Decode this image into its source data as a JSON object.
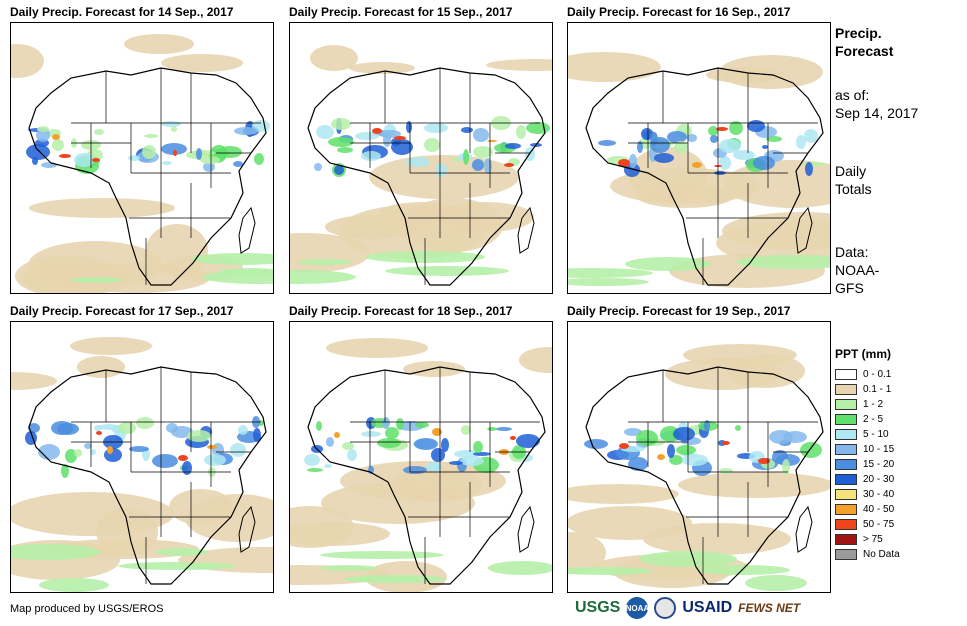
{
  "panels": [
    {
      "title": "Daily Precip. Forecast for 14  Sep., 2017",
      "variant": 0
    },
    {
      "title": "Daily Precip. Forecast for 15  Sep., 2017",
      "variant": 1
    },
    {
      "title": "Daily Precip. Forecast for 16  Sep., 2017",
      "variant": 2
    },
    {
      "title": "Daily Precip. Forecast for 17  Sep., 2017",
      "variant": 3
    },
    {
      "title": "Daily Precip. Forecast for 18  Sep., 2017",
      "variant": 4
    },
    {
      "title": "Daily Precip. Forecast for 19  Sep., 2017",
      "variant": 5
    }
  ],
  "sidebar": {
    "heading_line1": "Precip.",
    "heading_line2": "Forecast",
    "asof_label": "as of:",
    "asof_date": "Sep 14, 2017",
    "totals_line1": "Daily",
    "totals_line2": "Totals",
    "data_line1": "Data:",
    "data_line2": "NOAA-",
    "data_line3": "GFS"
  },
  "legend": {
    "title": "PPT (mm)",
    "items": [
      {
        "label": "0 - 0.1",
        "color": "#ffffff"
      },
      {
        "label": "0.1 - 1",
        "color": "#e8d5b0"
      },
      {
        "label": "1 - 2",
        "color": "#b6f0a8"
      },
      {
        "label": "2 - 5",
        "color": "#5ee06a"
      },
      {
        "label": "5 - 10",
        "color": "#aee8f2"
      },
      {
        "label": "10 - 15",
        "color": "#84b8ec"
      },
      {
        "label": "15 - 20",
        "color": "#4b8de0"
      },
      {
        "label": "20 - 30",
        "color": "#1f5fd6"
      },
      {
        "label": "30 - 40",
        "color": "#f6e27a"
      },
      {
        "label": "40 - 50",
        "color": "#f3a12a"
      },
      {
        "label": "50 - 75",
        "color": "#f0441c"
      },
      {
        "label": "> 75",
        "color": "#a01414"
      },
      {
        "label": "No Data",
        "color": "#9a9a9a"
      }
    ]
  },
  "footer": {
    "credit": "Map produced by USGS/EROS",
    "logos": [
      "USGS",
      "NOAA",
      "DHS",
      "USAID",
      "FEWS NET"
    ]
  }
}
